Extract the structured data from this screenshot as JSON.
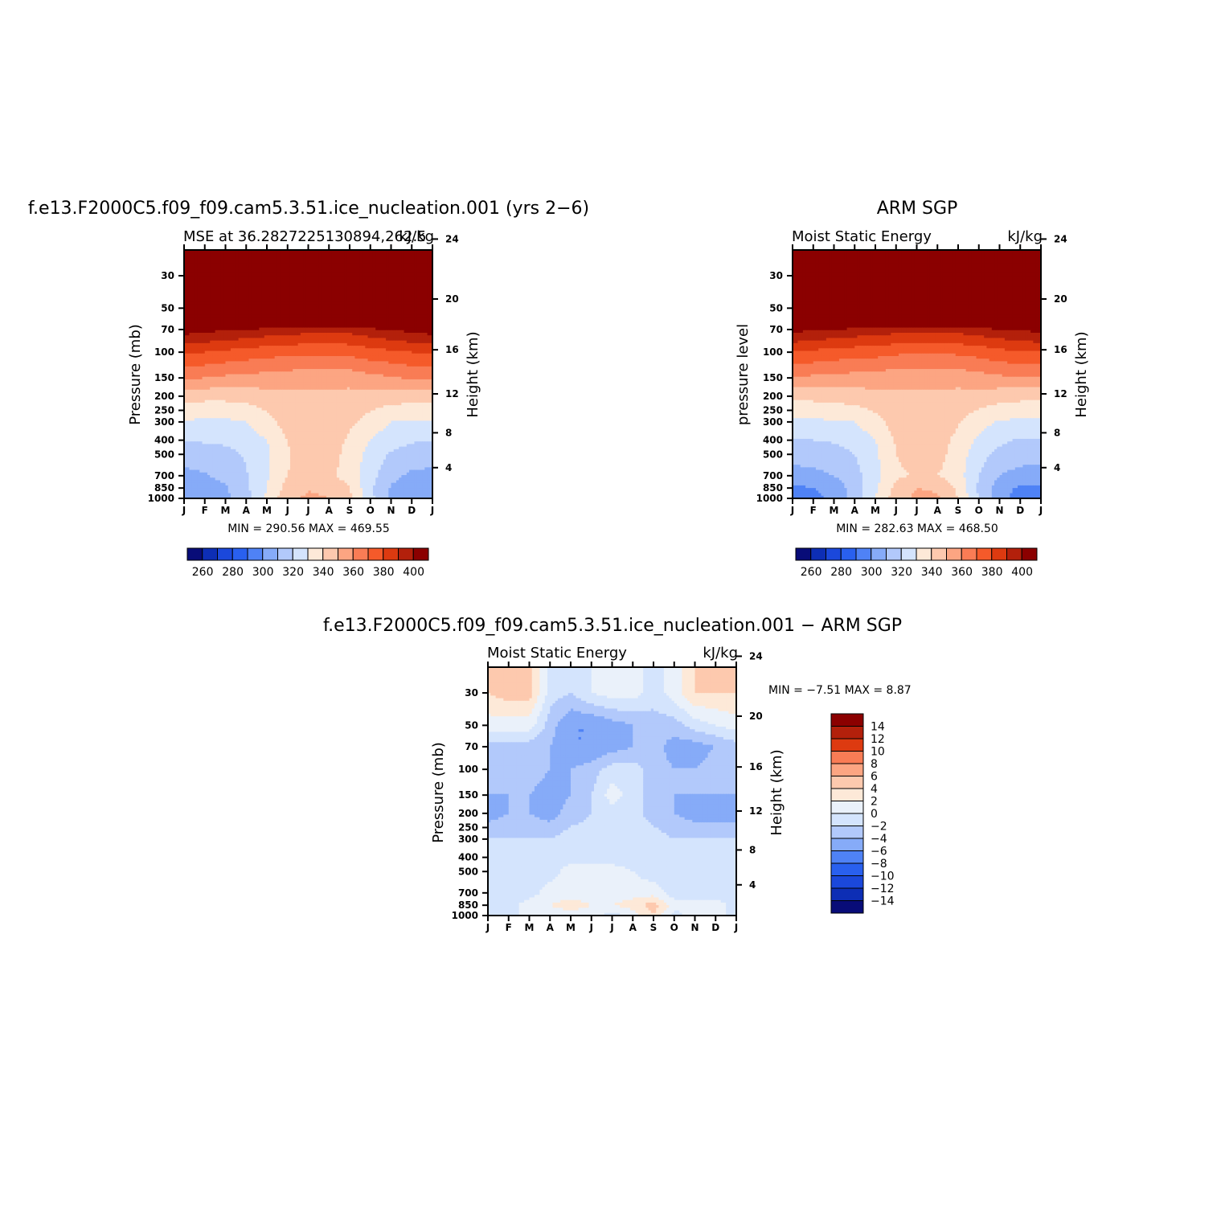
{
  "panels": [
    {
      "title": "f.e13.F2000C5.f09_f09.cam5.3.51.ice_nucleation.001 (yrs 2−6)",
      "left_label": "MSE at 36.2827225130894,262.5",
      "right_label": "kJ/kg",
      "ylabel": "Pressure (mb)",
      "ylabel_right": "Height (km)",
      "minmax": "MIN = 290.56  MAX = 469.55"
    },
    {
      "title": "ARM SGP",
      "left_label": "Moist Static Energy",
      "right_label": "kJ/kg",
      "ylabel": "pressure level",
      "ylabel_right": "Height (km)",
      "minmax": "MIN = 282.63  MAX = 468.50"
    },
    {
      "title": "f.e13.F2000C5.f09_f09.cam5.3.51.ice_nucleation.001 − ARM SGP",
      "left_label": "Moist Static Energy",
      "right_label": "kJ/kg",
      "ylabel": "Pressure (mb)",
      "ylabel_right": "Height (km)",
      "minmax": "MIN =   −7.51  MAX =    8.87"
    }
  ],
  "colors": {
    "abs": [
      "#080c78",
      "#0d2eb5",
      "#1b48db",
      "#2960ef",
      "#4f82f6",
      "#86abf8",
      "#b2c9fb",
      "#d4e4fd",
      "#fde9d8",
      "#fdc9ae",
      "#fca582",
      "#f97c55",
      "#f55a2a",
      "#dd3a10",
      "#b3200b",
      "#8b0000"
    ],
    "diff": [
      "#080c78",
      "#0d2eb5",
      "#1b48db",
      "#2960ef",
      "#4f82f6",
      "#86abf8",
      "#b2c9fb",
      "#d4e4fd",
      "#eaf1fa",
      "#fde9d8",
      "#fdc9ae",
      "#fca582",
      "#f97c55",
      "#dd3a10",
      "#b3200b",
      "#8b0000"
    ]
  },
  "chart_data": [
    {
      "type": "heatmap",
      "name": "model",
      "x_categories": [
        "J",
        "F",
        "M",
        "A",
        "M",
        "J",
        "J",
        "A",
        "S",
        "O",
        "N",
        "D",
        "J"
      ],
      "y_pressure_ticks": [
        30,
        50,
        70,
        100,
        150,
        200,
        250,
        300,
        400,
        500,
        700,
        850,
        1000
      ],
      "y_height_ticks": [
        24,
        20,
        16,
        12,
        8,
        4
      ],
      "levels_mb": [
        30,
        50,
        70,
        100,
        150,
        200,
        300,
        400,
        500,
        700,
        850,
        1000
      ],
      "values": [
        [
          470,
          470,
          470,
          470,
          470,
          470,
          470,
          470,
          470,
          470,
          470,
          470,
          470
        ],
        [
          468,
          468,
          468,
          467,
          466,
          465,
          464,
          464,
          465,
          466,
          467,
          468,
          468
        ],
        [
          395,
          393,
          391,
          389,
          387,
          385,
          384,
          383,
          384,
          387,
          390,
          393,
          395
        ],
        [
          372,
          370,
          368,
          366,
          364,
          363,
          362,
          362,
          363,
          366,
          368,
          370,
          372
        ],
        [
          352,
          350,
          348,
          347,
          346,
          345,
          343,
          343,
          344,
          347,
          349,
          351,
          352
        ],
        [
          334,
          333,
          333,
          334,
          336,
          338,
          338,
          338,
          337,
          336,
          335,
          334,
          334
        ],
        [
          319,
          318,
          318,
          320,
          326,
          335,
          338,
          338,
          332,
          326,
          320,
          319,
          319
        ],
        [
          310,
          311,
          312,
          315,
          320,
          330,
          336,
          336,
          328,
          320,
          314,
          311,
          310
        ],
        [
          305,
          306,
          307,
          311,
          318,
          329,
          335,
          335,
          326,
          316,
          309,
          306,
          305
        ],
        [
          297,
          299,
          303,
          309,
          319,
          330,
          333,
          332,
          326,
          314,
          303,
          298,
          297
        ],
        [
          291,
          294,
          299,
          308,
          320,
          334,
          339,
          338,
          330,
          312,
          299,
          293,
          291
        ],
        [
          290,
          292,
          298,
          306,
          322,
          337,
          342,
          340,
          332,
          313,
          298,
          291,
          290
        ]
      ],
      "colorbar_ticks": [
        "260",
        "280",
        "300",
        "320",
        "340",
        "360",
        "380",
        "400"
      ]
    },
    {
      "type": "heatmap",
      "name": "obs",
      "x_categories": [
        "J",
        "F",
        "M",
        "A",
        "M",
        "J",
        "J",
        "A",
        "S",
        "O",
        "N",
        "D",
        "J"
      ],
      "y_pressure_ticks": [
        30,
        50,
        70,
        100,
        150,
        200,
        250,
        300,
        400,
        500,
        700,
        850,
        1000
      ],
      "y_height_ticks": [
        24,
        20,
        16,
        12,
        8,
        4
      ],
      "levels_mb": [
        30,
        50,
        70,
        100,
        150,
        200,
        300,
        400,
        500,
        700,
        850,
        1000
      ],
      "values": [
        [
          468,
          468,
          468,
          468,
          468,
          468,
          468,
          468,
          468,
          468,
          468,
          468,
          468
        ],
        [
          466,
          465,
          465,
          464,
          463,
          462,
          462,
          462,
          462,
          463,
          464,
          465,
          466
        ],
        [
          393,
          391,
          389,
          387,
          386,
          384,
          383,
          383,
          384,
          386,
          389,
          391,
          393
        ],
        [
          370,
          368,
          366,
          365,
          364,
          362,
          361,
          361,
          362,
          364,
          367,
          369,
          370
        ],
        [
          349,
          348,
          347,
          346,
          345,
          344,
          343,
          343,
          344,
          346,
          348,
          349,
          349
        ],
        [
          333,
          333,
          334,
          335,
          337,
          338,
          338,
          338,
          337,
          336,
          334,
          333,
          333
        ],
        [
          318,
          318,
          319,
          320,
          326,
          335,
          338,
          337,
          331,
          324,
          319,
          318,
          318
        ],
        [
          309,
          310,
          311,
          314,
          320,
          331,
          336,
          335,
          327,
          318,
          312,
          309,
          309
        ],
        [
          304,
          305,
          306,
          310,
          318,
          330,
          335,
          334,
          325,
          314,
          307,
          305,
          304
        ],
        [
          296,
          297,
          300,
          306,
          317,
          328,
          331,
          330,
          324,
          310,
          300,
          296,
          296
        ],
        [
          288,
          290,
          294,
          304,
          318,
          333,
          340,
          339,
          328,
          308,
          295,
          288,
          288
        ],
        [
          284,
          287,
          293,
          303,
          320,
          336,
          342,
          341,
          330,
          310,
          294,
          285,
          284
        ]
      ],
      "colorbar_ticks": [
        "260",
        "280",
        "300",
        "320",
        "340",
        "360",
        "380",
        "400"
      ]
    },
    {
      "type": "heatmap",
      "name": "difference",
      "x_categories": [
        "J",
        "F",
        "M",
        "A",
        "M",
        "J",
        "J",
        "A",
        "S",
        "O",
        "N",
        "D",
        "J"
      ],
      "y_pressure_ticks": [
        30,
        50,
        70,
        100,
        150,
        200,
        250,
        300,
        400,
        500,
        700,
        850,
        1000
      ],
      "y_height_ticks": [
        24,
        20,
        16,
        12,
        8,
        4
      ],
      "levels_mb": [
        30,
        50,
        70,
        100,
        150,
        200,
        300,
        400,
        500,
        700,
        850,
        1000
      ],
      "values": [
        [
          4,
          5,
          5,
          -1,
          -2,
          0,
          1,
          1,
          -1,
          1,
          4,
          4,
          4
        ],
        [
          1,
          1,
          1,
          -3,
          -6,
          -6,
          -5,
          -4,
          -3,
          -3,
          -1,
          0,
          1
        ],
        [
          -3,
          -3,
          -3,
          -4,
          -6,
          -6,
          -5,
          -4,
          -3,
          -5,
          -5,
          -4,
          -3
        ],
        [
          -3,
          -3,
          -3,
          -4,
          -4,
          -3,
          -1,
          -1,
          -3,
          -4,
          -4,
          -3,
          -3
        ],
        [
          -4,
          -4,
          -4,
          -5,
          -4,
          -2,
          1,
          -1,
          -3,
          -4,
          -4,
          -4,
          -4
        ],
        [
          -5,
          -4,
          -4,
          -5,
          -3,
          -2,
          -1,
          -1,
          -3,
          -4,
          -5,
          -5,
          -5
        ],
        [
          -2,
          -2,
          -2,
          -2,
          -1,
          -1,
          -1,
          -1,
          -1,
          -2,
          -2,
          -2,
          -2
        ],
        [
          -1,
          -1,
          -1,
          -1,
          -1,
          -1,
          -1,
          -1,
          -1,
          -1,
          -1,
          -1,
          -1
        ],
        [
          -1,
          -1,
          -1,
          -1,
          1,
          1,
          1,
          0,
          -1,
          -1,
          -1,
          -1,
          -1
        ],
        [
          -1,
          -1,
          -1,
          1,
          1,
          1,
          1,
          1,
          1,
          -1,
          -1,
          -1,
          -1
        ],
        [
          -1,
          -1,
          1,
          2,
          3,
          2,
          2,
          3,
          5,
          1,
          1,
          1,
          -1
        ],
        [
          -1,
          -1,
          1,
          1,
          1,
          1,
          -1,
          1,
          4,
          -1,
          1,
          1,
          -1
        ]
      ],
      "colorbar_ticks": [
        "14",
        "12",
        "10",
        "8",
        "6",
        "4",
        "2",
        "0",
        "−2",
        "−4",
        "−6",
        "−8",
        "−10",
        "−12",
        "−14"
      ]
    }
  ]
}
